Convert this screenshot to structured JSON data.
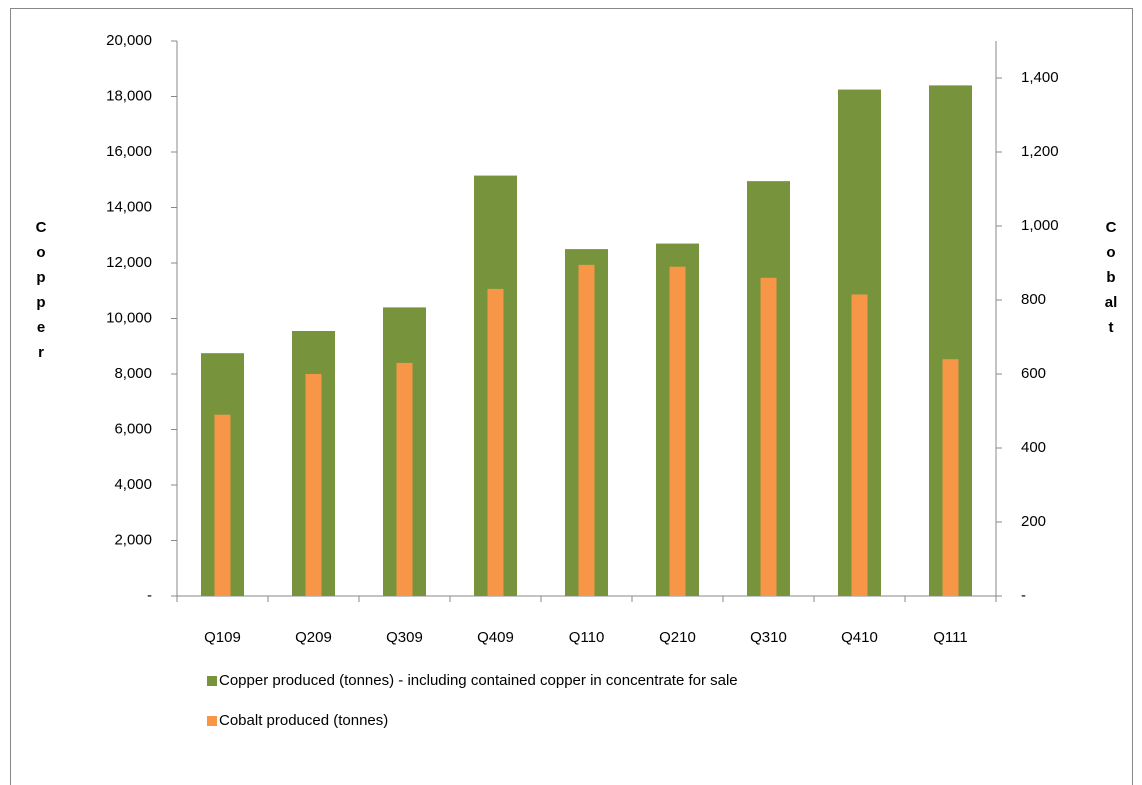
{
  "chart_data": {
    "type": "bar",
    "categories": [
      "Q109",
      "Q209",
      "Q309",
      "Q409",
      "Q110",
      "Q210",
      "Q310",
      "Q410",
      "Q111"
    ],
    "y_label": "Copper",
    "y2_label": "Cobalt",
    "series": [
      {
        "name": "Copper produced (tonnes) - including contained copper in concentrate for sale",
        "color": "#77933c",
        "values": [
          8750,
          9550,
          10400,
          15150,
          12500,
          12700,
          14950,
          18250,
          18400
        ]
      },
      {
        "name": "Cobalt produced (tonnes)",
        "color": "#f79646",
        "axis": "y2",
        "values": [
          490,
          600,
          630,
          830,
          895,
          890,
          860,
          815,
          640
        ]
      }
    ],
    "ylim": [
      0,
      20000
    ],
    "yticks": [
      {
        "value": 0,
        "label": "-"
      },
      {
        "value": 2000,
        "label": "2,000"
      },
      {
        "value": 4000,
        "label": "4,000"
      },
      {
        "value": 6000,
        "label": "6,000"
      },
      {
        "value": 8000,
        "label": "8,000"
      },
      {
        "value": 10000,
        "label": "10,000"
      },
      {
        "value": 12000,
        "label": "12,000"
      },
      {
        "value": 14000,
        "label": "14,000"
      },
      {
        "value": 16000,
        "label": "16,000"
      },
      {
        "value": 18000,
        "label": "18,000"
      },
      {
        "value": 20000,
        "label": "20,000"
      }
    ],
    "y2lim": [
      0,
      1500
    ],
    "y2ticks": [
      {
        "value": 0,
        "label": "-"
      },
      200,
      400,
      600,
      800,
      {
        "value": 1000,
        "label": "1,000"
      },
      {
        "value": 1200,
        "label": "1,200"
      },
      {
        "value": 1400,
        "label": "1,400"
      }
    ]
  }
}
